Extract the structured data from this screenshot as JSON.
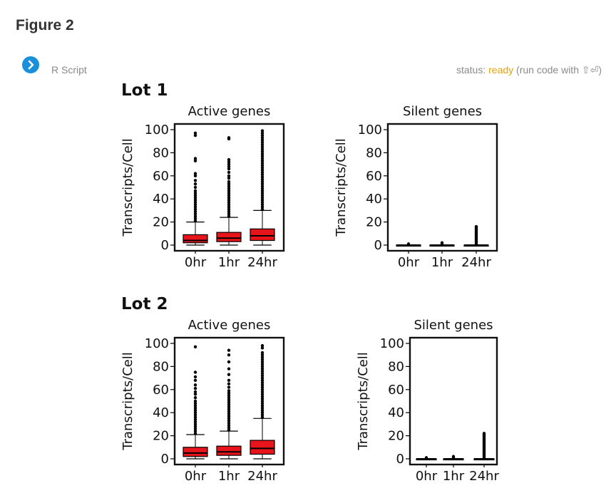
{
  "page": {
    "title": "Figure 2",
    "language_label": "R Script",
    "status_prefix": "status: ",
    "status_value": "ready",
    "status_suffix": " (run code with ⇧⏎)",
    "run_icon": "chevron-right-icon"
  },
  "colors": {
    "box_fill": "#e8141c",
    "accent": "#1a8fdc",
    "status_ready": "#e6a400"
  },
  "lots": [
    {
      "title": "Lot 1"
    },
    {
      "title": "Lot 2"
    }
  ],
  "chart_data": [
    {
      "type": "boxplot",
      "group": "Lot 1",
      "title": "Active genes",
      "ylabel": "Transcripts/Cell",
      "ylim": [
        0,
        100
      ],
      "yticks": [
        0,
        20,
        40,
        60,
        80,
        100
      ],
      "categories": [
        "0hr",
        "1hr",
        "24hr"
      ],
      "boxes": [
        {
          "label": "0hr",
          "whisker_low": 0,
          "q1": 2,
          "median": 4,
          "q3": 9,
          "whisker_high": 20
        },
        {
          "label": "1hr",
          "whisker_low": 0,
          "q1": 3,
          "median": 6,
          "q3": 11,
          "whisker_high": 24
        },
        {
          "label": "24hr",
          "whisker_low": 0,
          "q1": 4,
          "median": 8,
          "q3": 14,
          "whisker_high": 30
        }
      ],
      "outliers": [
        [
          21,
          23,
          25,
          27,
          29,
          31,
          33,
          35,
          37,
          39,
          41,
          43,
          45,
          47,
          50,
          53,
          56,
          60,
          62,
          73,
          75,
          95,
          97
        ],
        [
          25,
          27,
          29,
          31,
          33,
          35,
          37,
          39,
          41,
          43,
          45,
          47,
          49,
          51,
          53,
          55,
          58,
          60,
          63,
          66,
          68,
          70,
          72,
          74,
          92,
          93
        ],
        [
          31,
          33,
          35,
          37,
          39,
          41,
          43,
          45,
          47,
          49,
          51,
          53,
          55,
          57,
          59,
          61,
          63,
          65,
          67,
          69,
          71,
          73,
          75,
          77,
          79,
          81,
          83,
          85,
          87,
          89,
          91,
          93,
          95,
          97,
          99
        ]
      ]
    },
    {
      "type": "boxplot",
      "group": "Lot 1",
      "title": "Silent genes",
      "ylabel": "Transcripts/Cell",
      "ylim": [
        0,
        100
      ],
      "yticks": [
        0,
        20,
        40,
        60,
        80,
        100
      ],
      "categories": [
        "0hr",
        "1hr",
        "24hr"
      ],
      "boxes": [
        {
          "label": "0hr",
          "whisker_low": 0,
          "q1": 0,
          "median": 0,
          "q3": 0,
          "whisker_high": 0
        },
        {
          "label": "1hr",
          "whisker_low": 0,
          "q1": 0,
          "median": 0,
          "q3": 0,
          "whisker_high": 0
        },
        {
          "label": "24hr",
          "whisker_low": 0,
          "q1": 0,
          "median": 0,
          "q3": 0,
          "whisker_high": 0
        }
      ],
      "outliers": [
        [
          1
        ],
        [
          1,
          2
        ],
        [
          1,
          2,
          3,
          4,
          5,
          6,
          7,
          8,
          9,
          10,
          11,
          12,
          13,
          14,
          15,
          16
        ]
      ]
    },
    {
      "type": "boxplot",
      "group": "Lot 2",
      "title": "Active genes",
      "ylabel": "Transcripts/Cell",
      "ylim": [
        0,
        100
      ],
      "yticks": [
        0,
        20,
        40,
        60,
        80,
        100
      ],
      "categories": [
        "0hr",
        "1hr",
        "24hr"
      ],
      "boxes": [
        {
          "label": "0hr",
          "whisker_low": 0,
          "q1": 2,
          "median": 5,
          "q3": 10,
          "whisker_high": 21
        },
        {
          "label": "1hr",
          "whisker_low": 0,
          "q1": 3,
          "median": 6,
          "q3": 11,
          "whisker_high": 24
        },
        {
          "label": "24hr",
          "whisker_low": 0,
          "q1": 4,
          "median": 9,
          "q3": 16,
          "whisker_high": 35
        }
      ],
      "outliers": [
        [
          22,
          24,
          26,
          28,
          30,
          32,
          34,
          36,
          38,
          40,
          42,
          44,
          46,
          48,
          50,
          53,
          56,
          58,
          61,
          64,
          68,
          71,
          75,
          97
        ],
        [
          25,
          27,
          29,
          31,
          33,
          35,
          37,
          39,
          41,
          43,
          45,
          47,
          49,
          51,
          53,
          55,
          57,
          59,
          62,
          65,
          68,
          73,
          78,
          84,
          90,
          94
        ],
        [
          36,
          38,
          40,
          42,
          44,
          46,
          48,
          50,
          52,
          54,
          56,
          58,
          60,
          62,
          64,
          66,
          68,
          70,
          72,
          74,
          76,
          78,
          80,
          82,
          84,
          86,
          88,
          90,
          92,
          96,
          98
        ]
      ]
    },
    {
      "type": "boxplot",
      "group": "Lot 2",
      "title": "Silent genes",
      "ylabel": "Transcripts/Cell",
      "ylim": [
        0,
        100
      ],
      "yticks": [
        0,
        20,
        40,
        60,
        80,
        100
      ],
      "categories": [
        "0hr",
        "1hr",
        "24hr"
      ],
      "boxes": [
        {
          "label": "0hr",
          "whisker_low": 0,
          "q1": 0,
          "median": 0,
          "q3": 0,
          "whisker_high": 0
        },
        {
          "label": "1hr",
          "whisker_low": 0,
          "q1": 0,
          "median": 0,
          "q3": 0,
          "whisker_high": 0
        },
        {
          "label": "24hr",
          "whisker_low": 0,
          "q1": 0,
          "median": 0,
          "q3": 0,
          "whisker_high": 0
        }
      ],
      "outliers": [
        [
          1
        ],
        [
          1,
          2
        ],
        [
          1,
          2,
          3,
          4,
          5,
          6,
          7,
          8,
          9,
          10,
          11,
          12,
          13,
          14,
          15,
          16,
          17,
          18,
          19,
          20,
          21,
          22
        ]
      ]
    }
  ]
}
